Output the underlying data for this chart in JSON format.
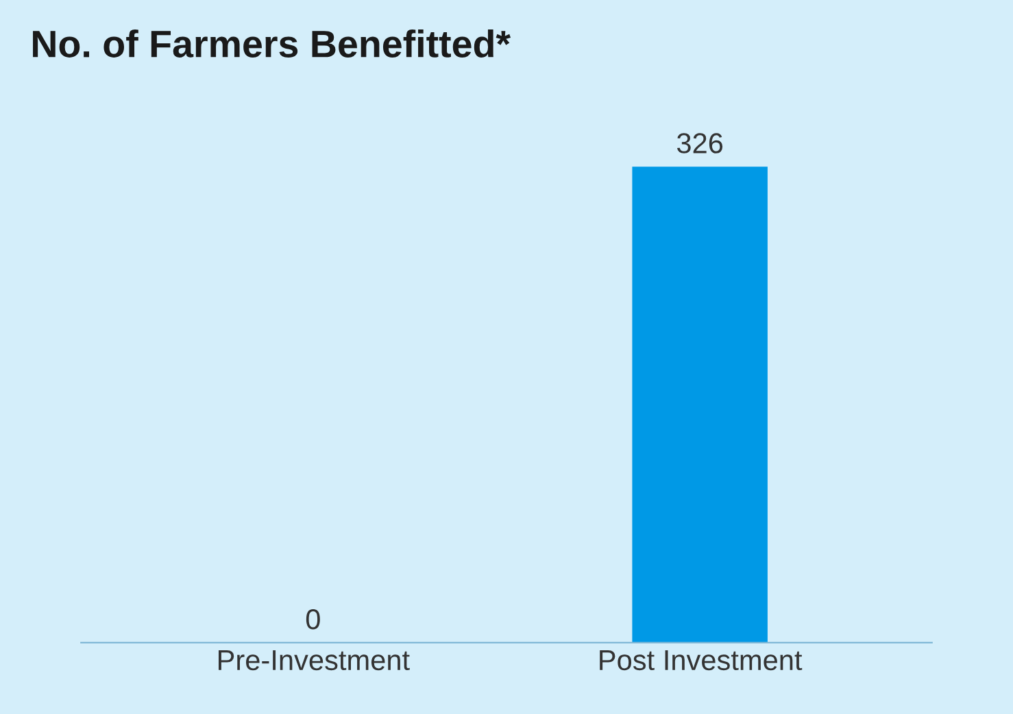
{
  "chart_data": {
    "type": "bar",
    "title": "No. of Farmers Benefitted*",
    "categories": [
      "Pre-Investment",
      "Post Investment"
    ],
    "values": [
      0,
      326
    ],
    "color": "#0099e6",
    "data_labels": true,
    "grid": false,
    "legend": false
  }
}
